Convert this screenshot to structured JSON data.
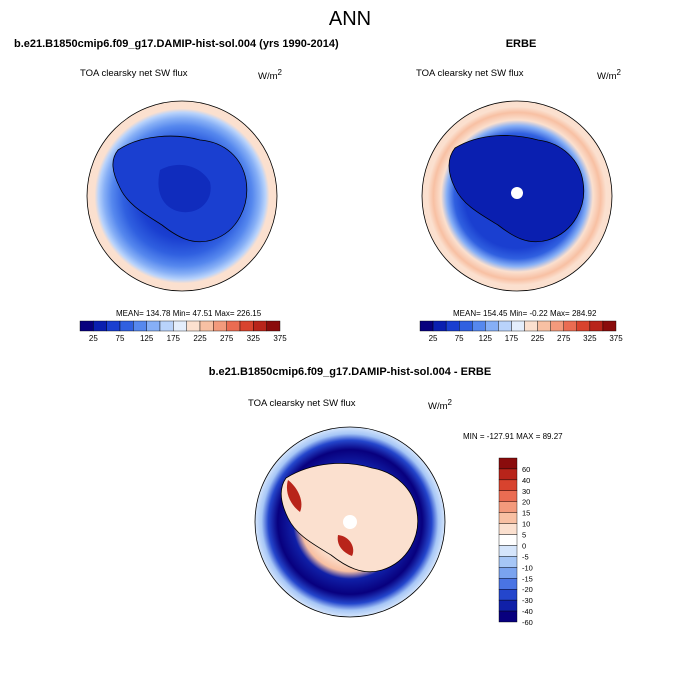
{
  "title": "ANN",
  "panels": [
    {
      "title": "b.e21.B1850cmip6.f09_g17.DAMIP-hist-sol.004 (yrs 1990-2014)",
      "variable": "TOA clearsky net SW flux",
      "units": "W/m",
      "units_sup": "2",
      "stats": "MEAN= 134.78  Min=  47.51  Max= 226.15",
      "colorbar_ticks": [
        "25",
        "75",
        "125",
        "175",
        "225",
        "275",
        "325",
        "375"
      ]
    },
    {
      "title": "ERBE",
      "variable": "TOA clearsky net SW flux",
      "units": "W/m",
      "units_sup": "2",
      "stats": "MEAN= 154.45  Min=  -0.22  Max= 284.92",
      "colorbar_ticks": [
        "25",
        "75",
        "125",
        "175",
        "225",
        "275",
        "325",
        "375"
      ]
    },
    {
      "title": "b.e21.B1850cmip6.f09_g17.DAMIP-hist-sol.004 - ERBE",
      "variable": "TOA clearsky net SW flux",
      "units": "W/m",
      "units_sup": "2",
      "stats": "MIN = -127.91  MAX =  89.27",
      "colorbar_ticks": [
        "60",
        "40",
        "30",
        "20",
        "15",
        "10",
        "5",
        "0",
        "-5",
        "-10",
        "-15",
        "-20",
        "-30",
        "-40",
        "-60"
      ]
    }
  ],
  "colors": {
    "abs_scale": [
      "#08007e",
      "#0a1fb0",
      "#1a3fd0",
      "#3060e0",
      "#5688ee",
      "#86aff6",
      "#b9d3fb",
      "#e4eefc",
      "#fbe0cf",
      "#f8c0a3",
      "#f39a7c",
      "#ea6c52",
      "#d8432e",
      "#b8241a",
      "#8a0c0c"
    ],
    "diff_scale": [
      "#8a0c0c",
      "#b8241a",
      "#d8432e",
      "#ea6c52",
      "#f39a7c",
      "#f8c0a3",
      "#fbe0cf",
      "#ffffff",
      "#d5e5fb",
      "#a6c6f6",
      "#7aa3ef",
      "#4a74e4",
      "#2446cc",
      "#1020a8",
      "#08007e"
    ]
  }
}
